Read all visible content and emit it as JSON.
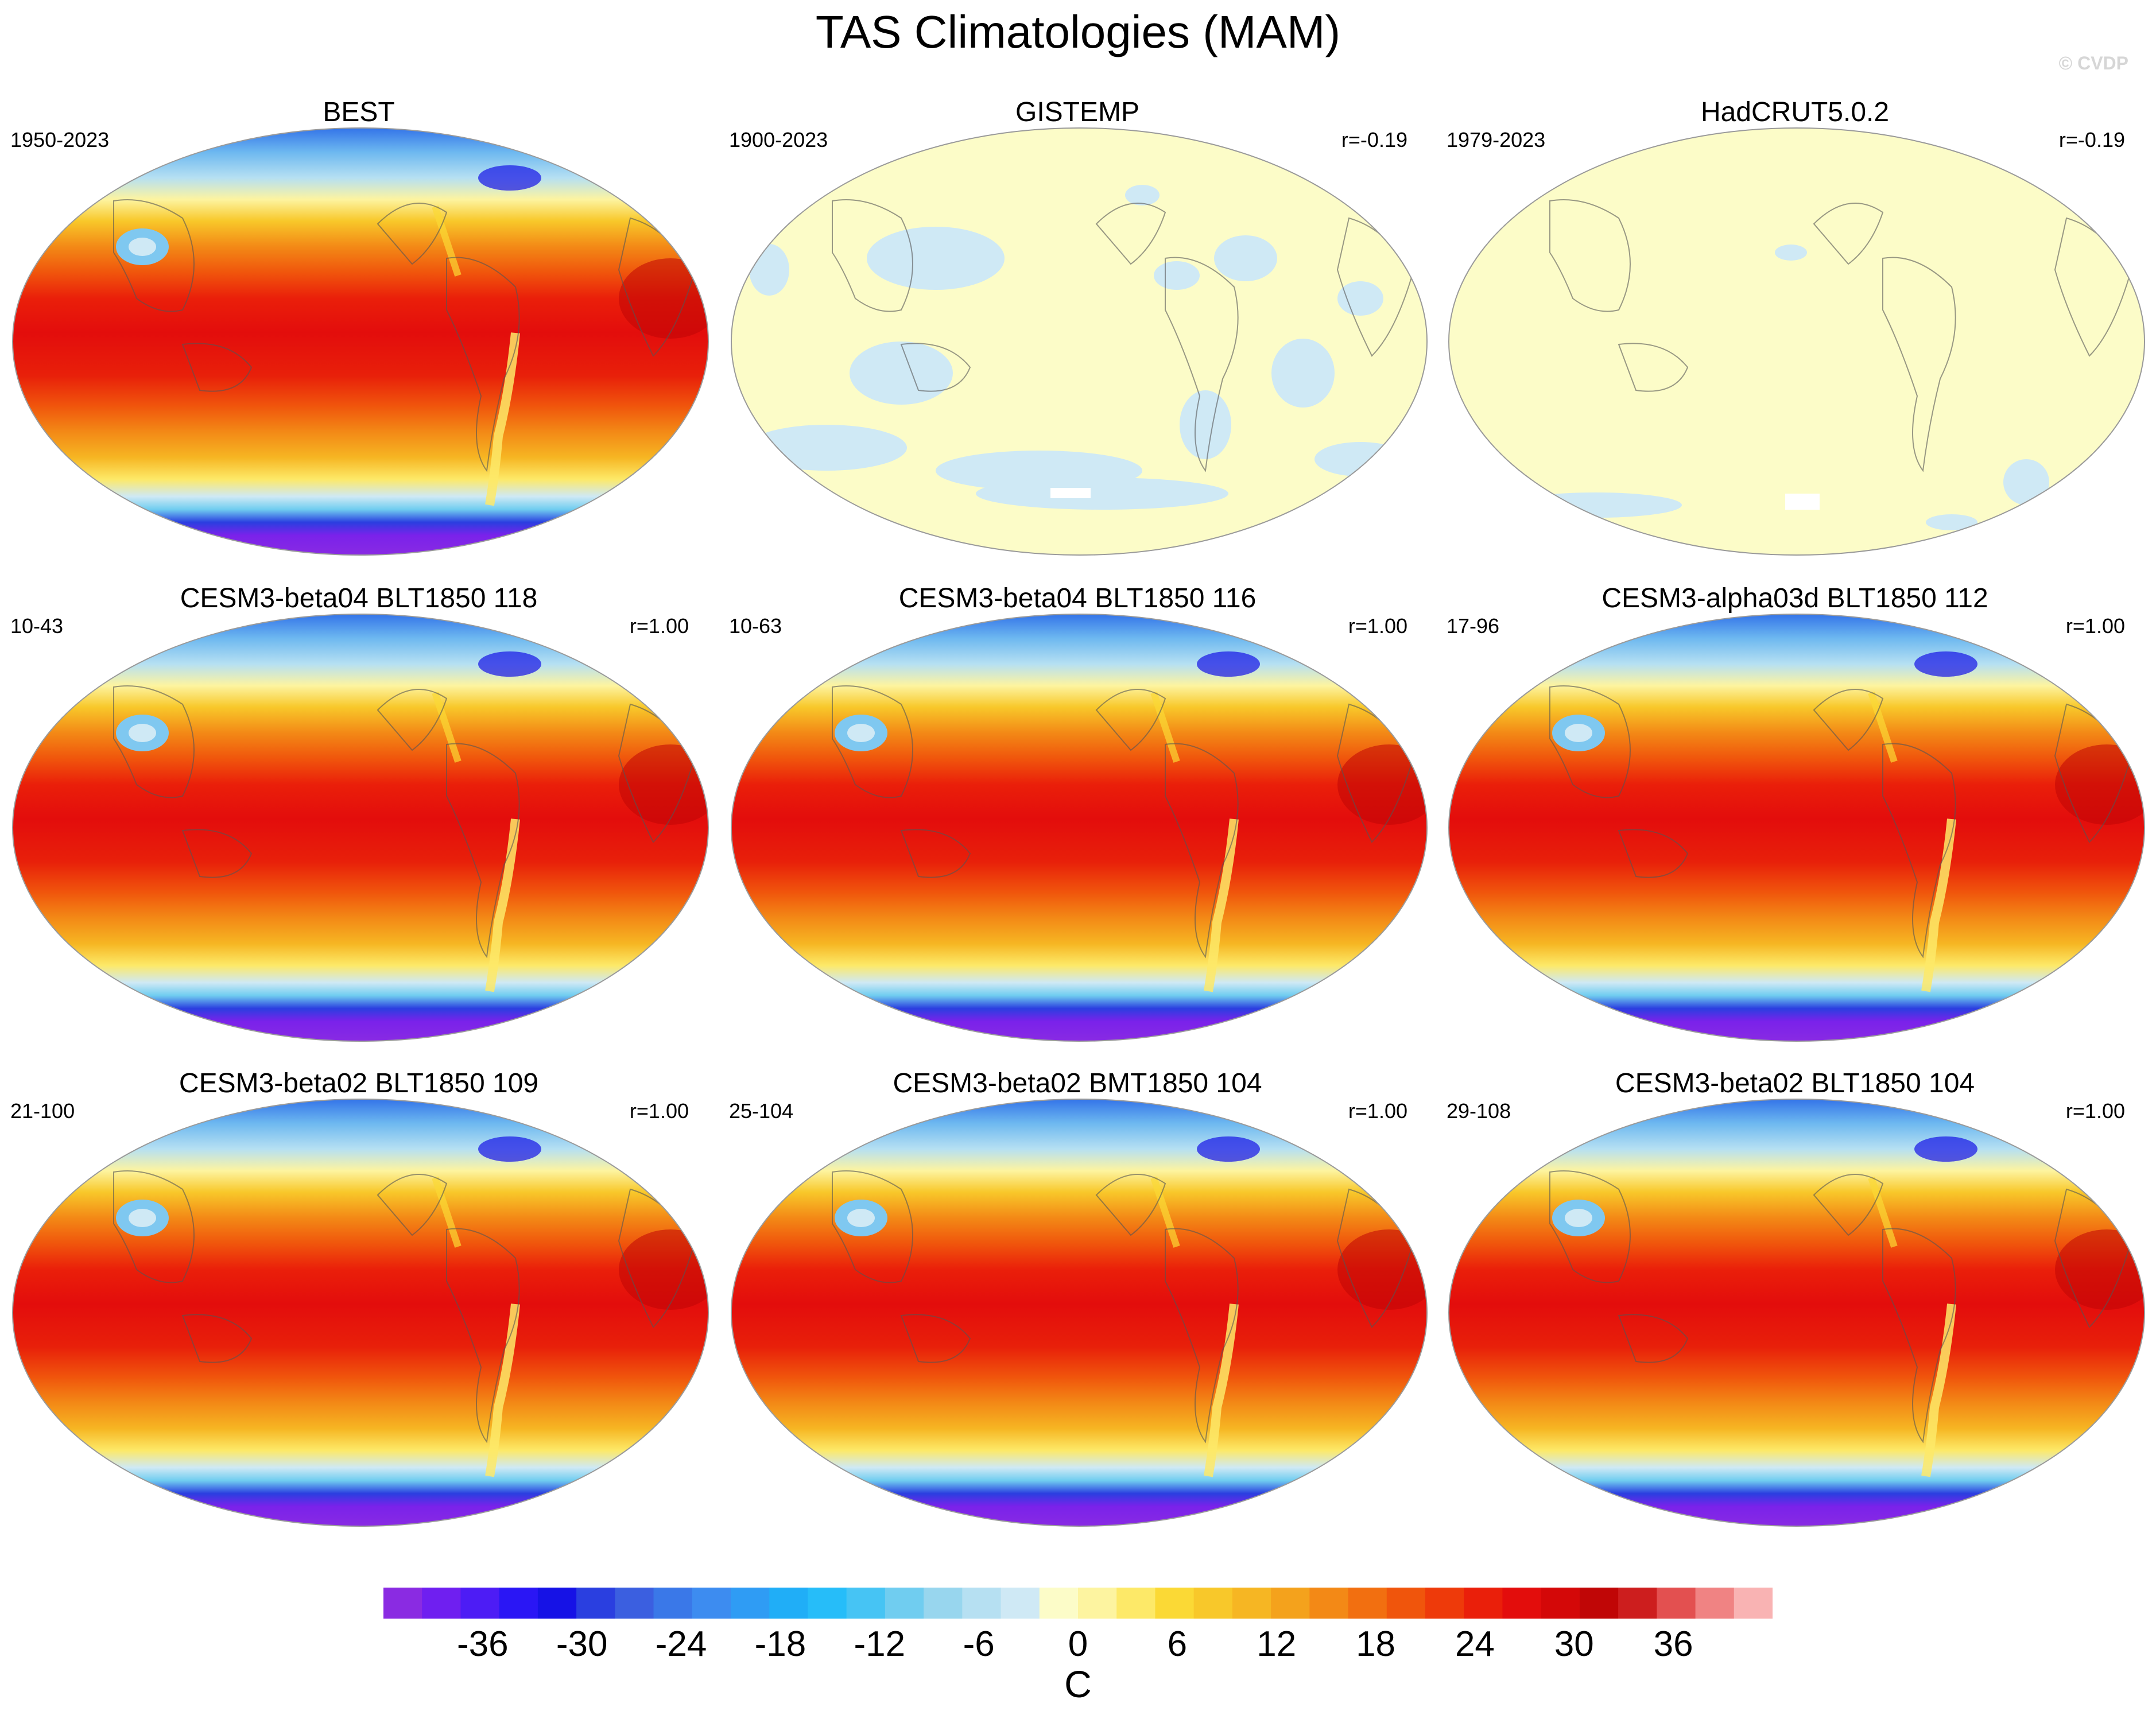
{
  "figure": {
    "title": "TAS Climatologies (MAM)",
    "credit": "© CVDP"
  },
  "panels": [
    {
      "title": "BEST",
      "left": "1950-2023",
      "right": "",
      "style": "full"
    },
    {
      "title": "GISTEMP",
      "left": "1900-2023",
      "right": "r=-0.19",
      "style": "gistemp"
    },
    {
      "title": "HadCRUT5.0.2",
      "left": "1979-2023",
      "right": "r=-0.19",
      "style": "hadcrut"
    },
    {
      "title": "CESM3-beta04 BLT1850 118",
      "left": "10-43",
      "right": "r=1.00",
      "style": "full"
    },
    {
      "title": "CESM3-beta04 BLT1850 116",
      "left": "10-63",
      "right": "r=1.00",
      "style": "full"
    },
    {
      "title": "CESM3-alpha03d BLT1850 112",
      "left": "17-96",
      "right": "r=1.00",
      "style": "full"
    },
    {
      "title": "CESM3-beta02 BLT1850 109",
      "left": "21-100",
      "right": "r=1.00",
      "style": "full"
    },
    {
      "title": "CESM3-beta02 BMT1850 104",
      "left": "25-104",
      "right": "r=1.00",
      "style": "full"
    },
    {
      "title": "CESM3-beta02 BLT1850 104",
      "left": "29-108",
      "right": "r=1.00",
      "style": "full"
    }
  ],
  "colorbar": {
    "unit": "C",
    "ticks": [
      "-36",
      "-30",
      "-24",
      "-18",
      "-12",
      "-6",
      "0",
      "6",
      "12",
      "18",
      "24",
      "30",
      "36"
    ],
    "tick_values": [
      -36,
      -30,
      -24,
      -18,
      -12,
      -6,
      0,
      6,
      12,
      18,
      24,
      30,
      36
    ],
    "min": -42,
    "max": 42,
    "step": 2,
    "colors": [
      "#8a2be2",
      "#6f1ff0",
      "#4d1cf5",
      "#2a16f5",
      "#1612e6",
      "#2a3fe0",
      "#3b5fe0",
      "#3a78e8",
      "#3d8cf0",
      "#2f9cf4",
      "#20aef7",
      "#26bdf9",
      "#46c4f4",
      "#70cdf0",
      "#98d6ee",
      "#b6e0f2",
      "#cfe9f5",
      "#fcfcc8",
      "#fdf4a0",
      "#fde968",
      "#fbd935",
      "#f8c82a",
      "#f6b623",
      "#f4a21c",
      "#f38916",
      "#f26f10",
      "#f0550c",
      "#ee3a0a",
      "#ea1f0a",
      "#e30d0c",
      "#d40808",
      "#c00606",
      "#cd1e1e",
      "#e35050",
      "#f08383",
      "#f9b3b3"
    ]
  }
}
